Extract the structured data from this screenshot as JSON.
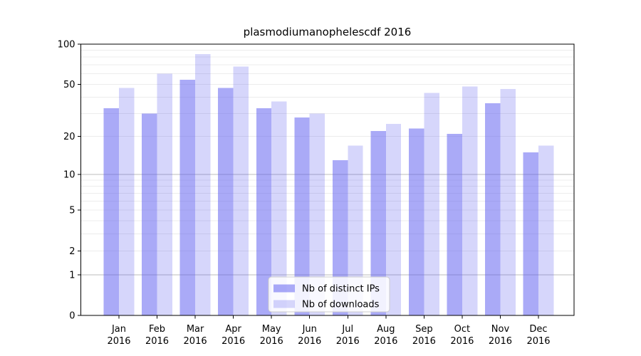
{
  "figure": {
    "title": "plasmodiumanophelescdf 2016"
  },
  "chart_data": {
    "type": "bar",
    "title": "plasmodiumanophelescdf 2016",
    "x_categories": [
      "Jan",
      "Feb",
      "Mar",
      "Apr",
      "May",
      "Jun",
      "Jul",
      "Aug",
      "Sep",
      "Oct",
      "Nov",
      "Dec"
    ],
    "x_year": "2016",
    "series": [
      {
        "name": "Nb of distinct IPs",
        "color": "rgba(85,85,240,0.50)",
        "values": [
          33,
          30,
          54,
          47,
          33,
          28,
          13,
          22,
          23,
          21,
          36,
          15
        ]
      },
      {
        "name": "Nb of downloads",
        "color": "rgba(85,85,240,0.24)",
        "values": [
          47,
          60,
          84,
          68,
          37,
          30,
          17,
          25,
          43,
          48,
          46,
          17
        ]
      }
    ],
    "yscale": "log1p",
    "ylim": [
      0,
      100
    ],
    "y_ticks": [
      100,
      50,
      20,
      10,
      5,
      2,
      1,
      0
    ],
    "grid": true,
    "grid_minor_values": [
      2,
      3,
      4,
      5,
      6,
      7,
      8,
      9,
      20,
      30,
      40,
      50,
      60,
      70,
      80,
      90
    ],
    "grid_major_values": [
      1,
      10
    ],
    "legend_position": "lower center"
  },
  "colors": {
    "background": "#ffffff",
    "bar_base": "#5555f0",
    "bar_distinct_ips_rendered": "#aaaaf7",
    "bar_downloads_rendered": "#dcdcf8",
    "grid_minor": "#ececec",
    "grid_major": "#bdbdbd",
    "axis": "#000000",
    "text": "#000000",
    "legend_border": "#cccccc",
    "legend_bg": "rgba(255,255,255,0.85)"
  }
}
